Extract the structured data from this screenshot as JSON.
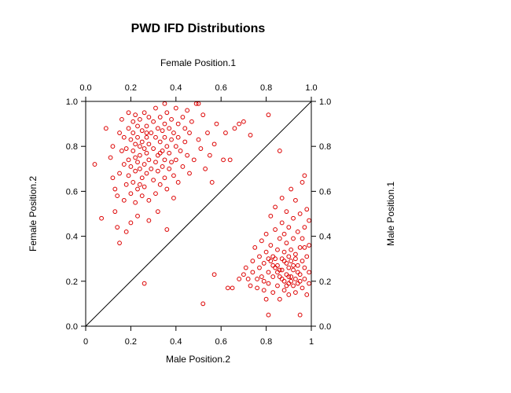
{
  "chart_data": {
    "type": "scatter",
    "title": "PWD IFD Distributions",
    "bottom_axis": {
      "label": "Male Position.2",
      "ticks": [
        "0",
        "0.2",
        "0.4",
        "0.6",
        "0.8",
        "1"
      ],
      "lim": [
        0,
        1
      ]
    },
    "top_axis": {
      "label": "Female Position.1",
      "ticks": [
        "0.0",
        "0.2",
        "0.4",
        "0.6",
        "0.8",
        "1.0"
      ],
      "lim": [
        0,
        1
      ]
    },
    "left_axis": {
      "label": "Female Position.2",
      "ticks": [
        "0.0",
        "0.2",
        "0.4",
        "0.6",
        "0.8",
        "1.0"
      ],
      "lim": [
        0,
        1
      ]
    },
    "right_axis": {
      "label": "Male Position.1",
      "ticks": [
        "0.0",
        "0.2",
        "0.4",
        "0.6",
        "0.8",
        "1.0"
      ],
      "lim": [
        0,
        1
      ]
    },
    "reference_line": "y = x",
    "marker": {
      "shape": "open-circle",
      "color": "#dd0000"
    },
    "grid": false,
    "series": [
      {
        "points": [
          [
            0.04,
            0.72
          ],
          [
            0.07,
            0.48
          ],
          [
            0.09,
            0.88
          ],
          [
            0.11,
            0.75
          ],
          [
            0.12,
            0.8
          ],
          [
            0.12,
            0.66
          ],
          [
            0.13,
            0.61
          ],
          [
            0.13,
            0.51
          ],
          [
            0.14,
            0.44
          ],
          [
            0.14,
            0.58
          ],
          [
            0.15,
            0.37
          ],
          [
            0.15,
            0.68
          ],
          [
            0.15,
            0.86
          ],
          [
            0.16,
            0.92
          ],
          [
            0.16,
            0.78
          ],
          [
            0.17,
            0.84
          ],
          [
            0.17,
            0.72
          ],
          [
            0.17,
            0.56
          ],
          [
            0.18,
            0.42
          ],
          [
            0.18,
            0.63
          ],
          [
            0.18,
            0.79
          ],
          [
            0.19,
            0.95
          ],
          [
            0.19,
            0.88
          ],
          [
            0.19,
            0.74
          ],
          [
            0.19,
            0.67
          ],
          [
            0.2,
            0.83
          ],
          [
            0.2,
            0.71
          ],
          [
            0.2,
            0.59
          ],
          [
            0.2,
            0.46
          ],
          [
            0.21,
            0.91
          ],
          [
            0.21,
            0.86
          ],
          [
            0.21,
            0.78
          ],
          [
            0.21,
            0.64
          ],
          [
            0.22,
            0.94
          ],
          [
            0.22,
            0.81
          ],
          [
            0.22,
            0.75
          ],
          [
            0.22,
            0.69
          ],
          [
            0.22,
            0.55
          ],
          [
            0.23,
            0.89
          ],
          [
            0.23,
            0.84
          ],
          [
            0.23,
            0.73
          ],
          [
            0.23,
            0.61
          ],
          [
            0.23,
            0.49
          ],
          [
            0.24,
            0.92
          ],
          [
            0.24,
            0.8
          ],
          [
            0.24,
            0.76
          ],
          [
            0.24,
            0.7
          ],
          [
            0.25,
            0.87
          ],
          [
            0.25,
            0.82
          ],
          [
            0.25,
            0.66
          ],
          [
            0.25,
            0.58
          ],
          [
            0.26,
            0.95
          ],
          [
            0.26,
            0.79
          ],
          [
            0.26,
            0.72
          ],
          [
            0.26,
            0.62
          ],
          [
            0.27,
            0.89
          ],
          [
            0.27,
            0.84
          ],
          [
            0.27,
            0.77
          ],
          [
            0.27,
            0.68
          ],
          [
            0.28,
            0.93
          ],
          [
            0.28,
            0.81
          ],
          [
            0.28,
            0.74
          ],
          [
            0.28,
            0.56
          ],
          [
            0.28,
            0.47
          ],
          [
            0.29,
            0.86
          ],
          [
            0.29,
            0.7
          ],
          [
            0.3,
            0.91
          ],
          [
            0.3,
            0.79
          ],
          [
            0.3,
            0.65
          ],
          [
            0.31,
            0.97
          ],
          [
            0.31,
            0.84
          ],
          [
            0.31,
            0.73
          ],
          [
            0.31,
            0.59
          ],
          [
            0.32,
            0.88
          ],
          [
            0.32,
            0.76
          ],
          [
            0.32,
            0.69
          ],
          [
            0.32,
            0.51
          ],
          [
            0.33,
            0.93
          ],
          [
            0.33,
            0.82
          ],
          [
            0.33,
            0.63
          ],
          [
            0.34,
            0.87
          ],
          [
            0.34,
            0.78
          ],
          [
            0.34,
            0.71
          ],
          [
            0.35,
            0.99
          ],
          [
            0.35,
            0.9
          ],
          [
            0.35,
            0.84
          ],
          [
            0.35,
            0.74
          ],
          [
            0.35,
            0.66
          ],
          [
            0.36,
            0.95
          ],
          [
            0.36,
            0.8
          ],
          [
            0.36,
            0.61
          ],
          [
            0.36,
            0.43
          ],
          [
            0.37,
            0.88
          ],
          [
            0.37,
            0.77
          ],
          [
            0.37,
            0.7
          ],
          [
            0.38,
            0.92
          ],
          [
            0.38,
            0.83
          ],
          [
            0.38,
            0.73
          ],
          [
            0.39,
            0.86
          ],
          [
            0.39,
            0.67
          ],
          [
            0.39,
            0.57
          ],
          [
            0.4,
            0.97
          ],
          [
            0.4,
            0.8
          ],
          [
            0.4,
            0.74
          ],
          [
            0.41,
            0.9
          ],
          [
            0.41,
            0.84
          ],
          [
            0.41,
            0.64
          ],
          [
            0.42,
            0.78
          ],
          [
            0.43,
            0.93
          ],
          [
            0.43,
            0.71
          ],
          [
            0.44,
            0.88
          ],
          [
            0.44,
            0.82
          ],
          [
            0.45,
            0.96
          ],
          [
            0.45,
            0.76
          ],
          [
            0.46,
            0.68
          ],
          [
            0.46,
            0.86
          ],
          [
            0.47,
            0.91
          ],
          [
            0.48,
            0.74
          ],
          [
            0.49,
            0.99
          ],
          [
            0.5,
            0.83
          ],
          [
            0.5,
            0.99
          ],
          [
            0.51,
            0.79
          ],
          [
            0.52,
            0.94
          ],
          [
            0.53,
            0.7
          ],
          [
            0.54,
            0.86
          ],
          [
            0.55,
            0.76
          ],
          [
            0.56,
            0.64
          ],
          [
            0.57,
            0.81
          ],
          [
            0.58,
            0.9
          ],
          [
            0.61,
            0.74
          ],
          [
            0.62,
            0.86
          ],
          [
            0.64,
            0.74
          ],
          [
            0.66,
            0.88
          ],
          [
            0.68,
            0.9
          ],
          [
            0.7,
            0.91
          ],
          [
            0.73,
            0.85
          ],
          [
            0.81,
            0.94
          ],
          [
            0.27,
            0.86
          ],
          [
            0.33,
            0.77
          ],
          [
            0.24,
            0.63
          ],
          [
            0.26,
            0.19
          ],
          [
            0.52,
            0.1
          ],
          [
            0.57,
            0.23
          ],
          [
            0.63,
            0.17
          ],
          [
            0.65,
            0.17
          ],
          [
            0.68,
            0.21
          ],
          [
            0.7,
            0.23
          ],
          [
            0.71,
            0.26
          ],
          [
            0.72,
            0.21
          ],
          [
            0.73,
            0.18
          ],
          [
            0.74,
            0.24
          ],
          [
            0.74,
            0.29
          ],
          [
            0.75,
            0.35
          ],
          [
            0.76,
            0.21
          ],
          [
            0.76,
            0.17
          ],
          [
            0.77,
            0.26
          ],
          [
            0.77,
            0.31
          ],
          [
            0.78,
            0.38
          ],
          [
            0.78,
            0.22
          ],
          [
            0.79,
            0.16
          ],
          [
            0.79,
            0.28
          ],
          [
            0.8,
            0.33
          ],
          [
            0.8,
            0.41
          ],
          [
            0.8,
            0.12
          ],
          [
            0.81,
            0.24
          ],
          [
            0.81,
            0.19
          ],
          [
            0.81,
            0.05
          ],
          [
            0.82,
            0.36
          ],
          [
            0.82,
            0.29
          ],
          [
            0.82,
            0.49
          ],
          [
            0.83,
            0.22
          ],
          [
            0.83,
            0.15
          ],
          [
            0.83,
            0.31
          ],
          [
            0.84,
            0.26
          ],
          [
            0.84,
            0.43
          ],
          [
            0.84,
            0.53
          ],
          [
            0.85,
            0.18
          ],
          [
            0.85,
            0.34
          ],
          [
            0.85,
            0.27
          ],
          [
            0.86,
            0.22
          ],
          [
            0.86,
            0.39
          ],
          [
            0.86,
            0.12
          ],
          [
            0.86,
            0.78
          ],
          [
            0.87,
            0.3
          ],
          [
            0.87,
            0.25
          ],
          [
            0.87,
            0.46
          ],
          [
            0.87,
            0.57
          ],
          [
            0.88,
            0.2
          ],
          [
            0.88,
            0.33
          ],
          [
            0.88,
            0.16
          ],
          [
            0.88,
            0.41
          ],
          [
            0.89,
            0.28
          ],
          [
            0.89,
            0.23
          ],
          [
            0.89,
            0.37
          ],
          [
            0.89,
            0.51
          ],
          [
            0.9,
            0.19
          ],
          [
            0.9,
            0.31
          ],
          [
            0.9,
            0.26
          ],
          [
            0.9,
            0.14
          ],
          [
            0.9,
            0.44
          ],
          [
            0.91,
            0.34
          ],
          [
            0.91,
            0.22
          ],
          [
            0.91,
            0.61
          ],
          [
            0.91,
            0.29
          ],
          [
            0.92,
            0.18
          ],
          [
            0.92,
            0.39
          ],
          [
            0.92,
            0.25
          ],
          [
            0.92,
            0.48
          ],
          [
            0.93,
            0.21
          ],
          [
            0.93,
            0.32
          ],
          [
            0.93,
            0.15
          ],
          [
            0.93,
            0.56
          ],
          [
            0.94,
            0.27
          ],
          [
            0.94,
            0.42
          ],
          [
            0.94,
            0.19
          ],
          [
            0.95,
            0.35
          ],
          [
            0.95,
            0.23
          ],
          [
            0.95,
            0.05
          ],
          [
            0.95,
            0.5
          ],
          [
            0.96,
            0.29
          ],
          [
            0.96,
            0.17
          ],
          [
            0.96,
            0.39
          ],
          [
            0.96,
            0.64
          ],
          [
            0.97,
            0.26
          ],
          [
            0.97,
            0.21
          ],
          [
            0.97,
            0.44
          ],
          [
            0.97,
            0.67
          ],
          [
            0.98,
            0.31
          ],
          [
            0.98,
            0.14
          ],
          [
            0.98,
            0.52
          ],
          [
            0.99,
            0.24
          ],
          [
            0.99,
            0.36
          ],
          [
            0.99,
            0.19
          ],
          [
            0.99,
            0.47
          ],
          [
            0.84,
            0.3
          ],
          [
            0.86,
            0.25
          ],
          [
            0.88,
            0.29
          ],
          [
            0.9,
            0.22
          ],
          [
            0.92,
            0.27
          ],
          [
            0.94,
            0.24
          ],
          [
            0.91,
            0.2
          ],
          [
            0.89,
            0.18
          ],
          [
            0.87,
            0.21
          ],
          [
            0.85,
            0.24
          ],
          [
            0.83,
            0.27
          ],
          [
            0.81,
            0.3
          ],
          [
            0.79,
            0.2
          ],
          [
            0.93,
            0.3
          ],
          [
            0.95,
            0.2
          ],
          [
            0.97,
            0.35
          ]
        ]
      }
    ]
  }
}
